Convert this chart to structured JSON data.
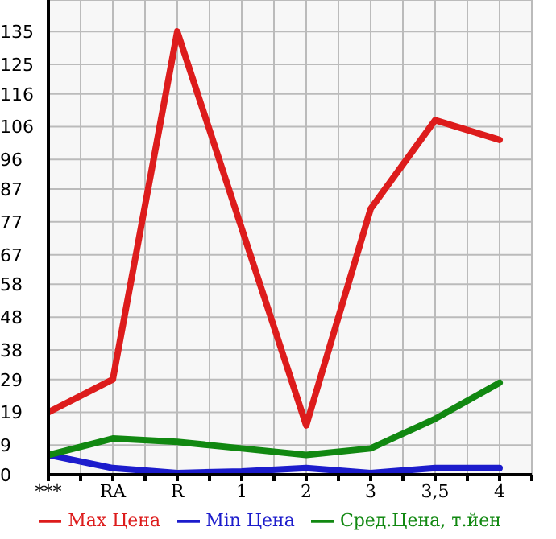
{
  "chart_data": {
    "type": "line",
    "categories": [
      "***",
      "RA",
      "R",
      "1",
      "2",
      "3",
      "3,5",
      "4"
    ],
    "series": [
      {
        "name": "Max Цена",
        "color": "#dd1c1c",
        "values": [
          19,
          29,
          135,
          75,
          15,
          81,
          108,
          102
        ]
      },
      {
        "name": "Min Цена",
        "color": "#1c1ccc",
        "values": [
          6,
          2,
          0.5,
          1,
          2,
          0.5,
          2,
          2
        ]
      },
      {
        "name": "Сред.Цена, т.йен",
        "color": "#118811",
        "values": [
          6,
          11,
          10,
          8,
          6,
          8,
          17,
          28
        ]
      }
    ],
    "ylim": [
      0,
      144.6
    ],
    "yticks": [
      0,
      9,
      19,
      29,
      38,
      48,
      58,
      67,
      77,
      87,
      96,
      106,
      116,
      125,
      135
    ],
    "grid": true,
    "legend": "bottom",
    "marker": "none",
    "line_style": "solid"
  }
}
